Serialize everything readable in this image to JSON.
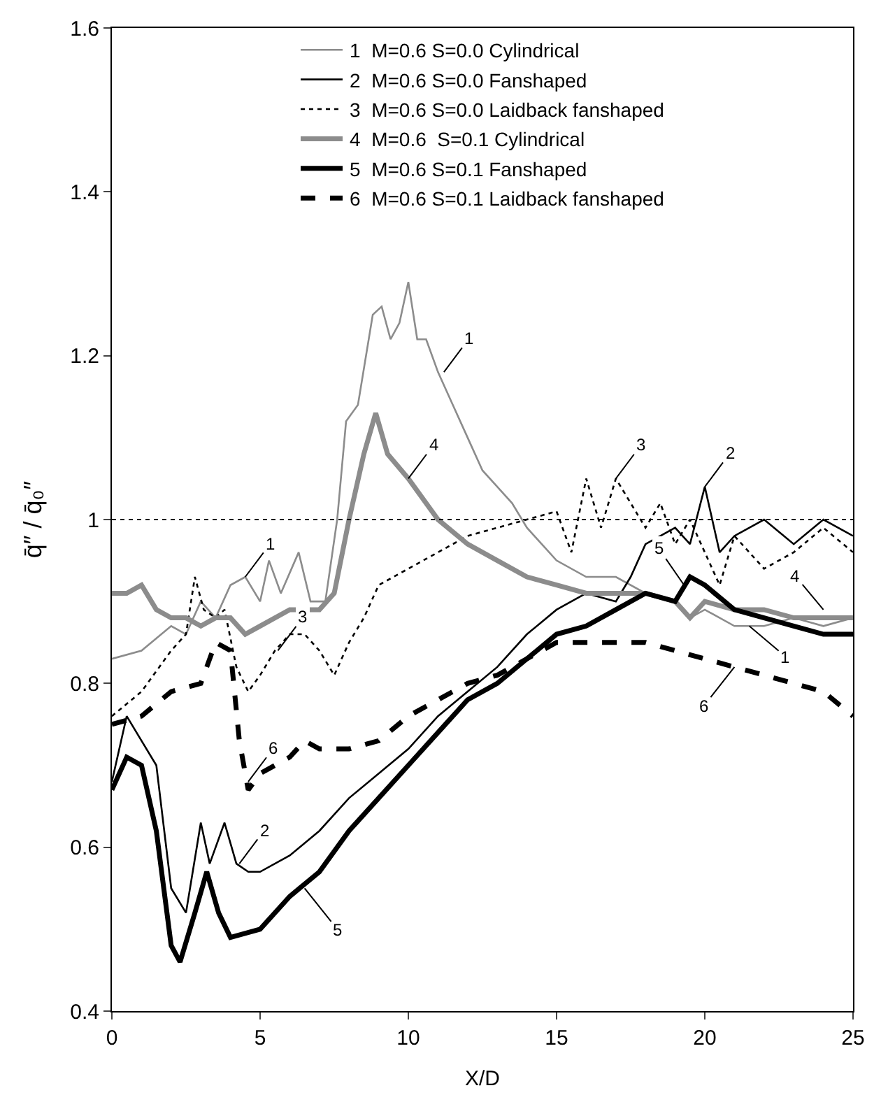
{
  "chart_data": {
    "type": "line",
    "xlabel": "X/D",
    "ylabel": "q̄″ / q̄₀″",
    "xlim": [
      0,
      25
    ],
    "xticks": [
      0,
      5,
      10,
      15,
      20,
      25
    ],
    "ylim": [
      0.4,
      1.6
    ],
    "yticks": [
      0.4,
      0.6,
      0.8,
      1,
      1.2,
      1.4,
      1.6
    ],
    "legend": "top",
    "marker": "none",
    "ref_lines": [
      {
        "axis": "y",
        "value": 1,
        "line_style": "dotted",
        "color": "#000000"
      }
    ],
    "series": [
      {
        "name": "1  M=0.6 S=0.0 Cylindrical",
        "color": "#8c8c8c",
        "line_style": "solid",
        "x": [
          0,
          1,
          2,
          2.5,
          3,
          3.5,
          4,
          4.5,
          5,
          5.3,
          5.7,
          6.3,
          6.7,
          7.2,
          7.6,
          7.9,
          8.3,
          8.8,
          9.1,
          9.4,
          9.7,
          10,
          10.3,
          10.6,
          11,
          11.5,
          12,
          12.5,
          13,
          13.5,
          14,
          14.5,
          15,
          16,
          17,
          18,
          19,
          19.5,
          20,
          21,
          22,
          23,
          24,
          25
        ],
        "values": [
          0.83,
          0.84,
          0.87,
          0.86,
          0.9,
          0.88,
          0.92,
          0.93,
          0.9,
          0.95,
          0.91,
          0.96,
          0.9,
          0.9,
          1.0,
          1.12,
          1.14,
          1.25,
          1.26,
          1.22,
          1.24,
          1.29,
          1.22,
          1.22,
          1.18,
          1.14,
          1.1,
          1.06,
          1.04,
          1.02,
          0.99,
          0.97,
          0.95,
          0.93,
          0.93,
          0.91,
          0.9,
          0.88,
          0.89,
          0.87,
          0.87,
          0.88,
          0.87,
          0.88
        ]
      },
      {
        "name": "2  M=0.6 S=0.0 Fanshaped",
        "color": "#000000",
        "line_style": "solid",
        "x": [
          0,
          0.5,
          1,
          1.5,
          2,
          2.5,
          3,
          3.3,
          3.8,
          4.2,
          4.6,
          5,
          6,
          7,
          8,
          9,
          10,
          11,
          12,
          13,
          14,
          15,
          16,
          17,
          17.5,
          18,
          19,
          19.5,
          20,
          20.5,
          21,
          22,
          23,
          24,
          25
        ],
        "values": [
          0.68,
          0.76,
          0.73,
          0.7,
          0.55,
          0.52,
          0.63,
          0.58,
          0.63,
          0.58,
          0.57,
          0.57,
          0.59,
          0.62,
          0.66,
          0.69,
          0.72,
          0.76,
          0.79,
          0.82,
          0.86,
          0.89,
          0.91,
          0.9,
          0.93,
          0.97,
          0.99,
          0.97,
          1.04,
          0.96,
          0.98,
          1.0,
          0.97,
          1.0,
          0.98
        ]
      },
      {
        "name": "3  M=0.6 S=0.0 Laidback fanshaped",
        "color": "#000000",
        "line_style": "dotted",
        "x": [
          0,
          1,
          2,
          2.5,
          2.8,
          3.1,
          3.5,
          3.8,
          4.2,
          4.6,
          5,
          5.5,
          6,
          6.5,
          7,
          7.5,
          8,
          8.5,
          9,
          10,
          11,
          12,
          13,
          14,
          15,
          15.5,
          16,
          16.5,
          17,
          17.5,
          18,
          18.5,
          19,
          19.5,
          20,
          20.5,
          21,
          22,
          23,
          24,
          25
        ],
        "values": [
          0.76,
          0.79,
          0.84,
          0.86,
          0.93,
          0.89,
          0.88,
          0.89,
          0.82,
          0.79,
          0.81,
          0.84,
          0.86,
          0.86,
          0.84,
          0.81,
          0.85,
          0.88,
          0.92,
          0.94,
          0.96,
          0.98,
          0.99,
          1.0,
          1.01,
          0.96,
          1.05,
          0.99,
          1.05,
          1.02,
          0.99,
          1.02,
          0.97,
          1.0,
          0.96,
          0.92,
          0.98,
          0.94,
          0.96,
          0.99,
          0.96
        ]
      },
      {
        "name": "4  M=0.6  S=0.1 Cylindrical",
        "color": "#8c8c8c",
        "line_style": "solid",
        "x": [
          0,
          0.5,
          1,
          1.5,
          2,
          2.5,
          3,
          3.5,
          4,
          4.5,
          5,
          6,
          7,
          7.5,
          8,
          8.5,
          8.9,
          9.3,
          10,
          11,
          12,
          13,
          14,
          15,
          16,
          17,
          18,
          19,
          19.5,
          20,
          21,
          22,
          23,
          24,
          25
        ],
        "values": [
          0.91,
          0.91,
          0.92,
          0.89,
          0.88,
          0.88,
          0.87,
          0.88,
          0.88,
          0.86,
          0.87,
          0.89,
          0.89,
          0.91,
          1.0,
          1.08,
          1.13,
          1.08,
          1.05,
          1.0,
          0.97,
          0.95,
          0.93,
          0.92,
          0.91,
          0.91,
          0.91,
          0.9,
          0.88,
          0.9,
          0.89,
          0.89,
          0.88,
          0.88,
          0.88
        ]
      },
      {
        "name": "5  M=0.6 S=0.1 Fanshaped",
        "color": "#000000",
        "line_style": "solid",
        "x": [
          0,
          0.5,
          1,
          1.5,
          2,
          2.3,
          2.8,
          3.2,
          3.6,
          4,
          5,
          6,
          7,
          8,
          9,
          10,
          11,
          12,
          13,
          14,
          15,
          16,
          17,
          18,
          19,
          19.5,
          20,
          21,
          22,
          23,
          24,
          25
        ],
        "values": [
          0.67,
          0.71,
          0.7,
          0.62,
          0.48,
          0.46,
          0.52,
          0.57,
          0.52,
          0.49,
          0.5,
          0.54,
          0.57,
          0.62,
          0.66,
          0.7,
          0.74,
          0.78,
          0.8,
          0.83,
          0.86,
          0.87,
          0.89,
          0.91,
          0.9,
          0.93,
          0.92,
          0.89,
          0.88,
          0.87,
          0.86,
          0.86
        ]
      },
      {
        "name": "6  M=0.6 S=0.1 Laidback fanshaped",
        "color": "#000000",
        "line_style": "dashed",
        "x": [
          0,
          1,
          2,
          3,
          3.5,
          4,
          4.3,
          4.6,
          5,
          6,
          6.5,
          7,
          8,
          9,
          10,
          11,
          12,
          13,
          14,
          15,
          16,
          17,
          18,
          19,
          20,
          21,
          22,
          23,
          24,
          25
        ],
        "values": [
          0.75,
          0.76,
          0.79,
          0.8,
          0.85,
          0.84,
          0.73,
          0.67,
          0.69,
          0.71,
          0.73,
          0.72,
          0.72,
          0.73,
          0.76,
          0.78,
          0.8,
          0.81,
          0.83,
          0.85,
          0.85,
          0.85,
          0.85,
          0.84,
          0.83,
          0.82,
          0.81,
          0.8,
          0.79,
          0.76
        ]
      }
    ],
    "annotations": [
      {
        "text": "1",
        "x": 11.2,
        "y": 1.18
      },
      {
        "text": "4",
        "x": 10.0,
        "y": 1.05
      },
      {
        "text": "1",
        "x": 4.5,
        "y": 0.93
      },
      {
        "text": "3",
        "x": 17,
        "y": 1.05
      },
      {
        "text": "2",
        "x": 20.0,
        "y": 1.04
      },
      {
        "text": "3",
        "x": 5.6,
        "y": 0.84
      },
      {
        "text": "6",
        "x": 4.6,
        "y": 0.68
      },
      {
        "text": "2",
        "x": 4.3,
        "y": 0.58
      },
      {
        "text": "5",
        "x": 6.5,
        "y": 0.55
      },
      {
        "text": "5",
        "x": 19.3,
        "y": 0.92
      },
      {
        "text": "4",
        "x": 24.0,
        "y": 0.89
      },
      {
        "text": "1",
        "x": 21.5,
        "y": 0.87
      },
      {
        "text": "6",
        "x": 21,
        "y": 0.82
      }
    ]
  }
}
